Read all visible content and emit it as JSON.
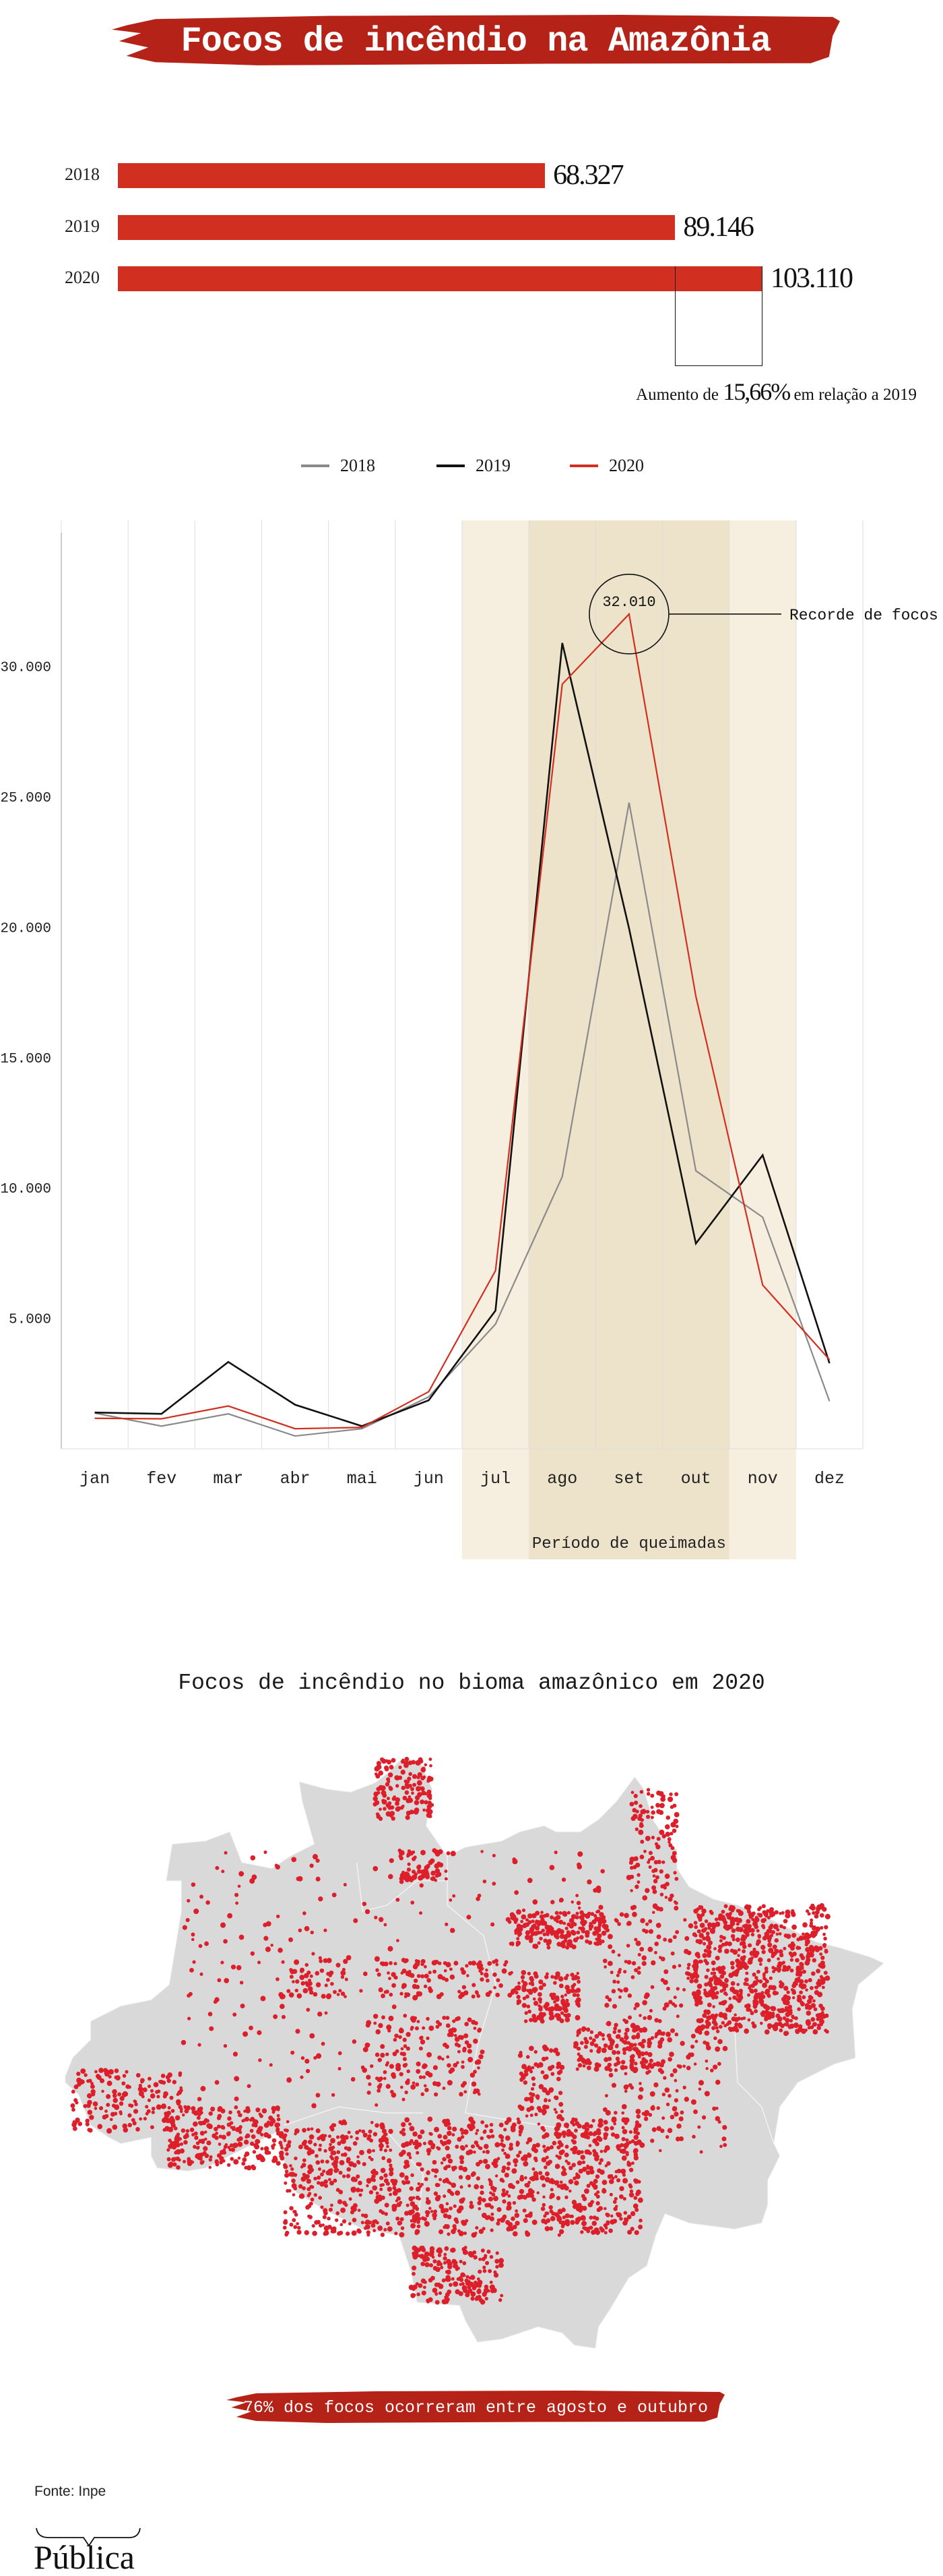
{
  "header": {
    "title": "Focos de incêndio na Amazônia"
  },
  "annotation_total": {
    "prefix": "Aumento de ",
    "value": "15,66%",
    "suffix": " em relação a 2019"
  },
  "legend": [
    {
      "label": "2018",
      "color": "#8a8a8a"
    },
    {
      "label": "2019",
      "color": "#111111"
    },
    {
      "label": "2020",
      "color": "#d12f20"
    }
  ],
  "chart_data": [
    {
      "type": "bar",
      "title": "Focos de incêndio na Amazônia",
      "orientation": "horizontal",
      "categories": [
        "2018",
        "2019",
        "2020"
      ],
      "values": [
        68327,
        89146,
        103110
      ],
      "value_labels": [
        "68.327",
        "89.146",
        "103.110"
      ],
      "color": "#d12f20"
    },
    {
      "type": "line",
      "categories": [
        "jan",
        "fev",
        "mar",
        "abr",
        "mai",
        "jun",
        "jul",
        "ago",
        "set",
        "out",
        "nov",
        "dez"
      ],
      "series": [
        {
          "name": "2018",
          "color": "#8a8a8a",
          "values": [
            1370,
            870,
            1340,
            490,
            770,
            1990,
            4780,
            10440,
            24780,
            10660,
            8880,
            1830
          ]
        },
        {
          "name": "2019",
          "color": "#111111",
          "values": [
            1390,
            1340,
            3330,
            1690,
            870,
            1860,
            5300,
            30900,
            19950,
            7870,
            11260,
            3280
          ]
        },
        {
          "name": "2020",
          "color": "#d12f20",
          "values": [
            1170,
            1150,
            1640,
            770,
            820,
            2190,
            6830,
            29320,
            32010,
            17350,
            6280,
            3420
          ]
        }
      ],
      "yticks": [
        5000,
        10000,
        15000,
        20000,
        25000,
        30000
      ],
      "ytick_labels": [
        "5.000",
        "10.000",
        "15.000",
        "20.000",
        "25.000",
        "30.000"
      ],
      "ylim": [
        0,
        35600
      ],
      "grid": "vertical",
      "shaded_periods": [
        {
          "label": "Período de queimadas",
          "from": "jul",
          "to": "nov",
          "color": "#f6efe0"
        },
        {
          "label": "",
          "from": "ago",
          "to": "out",
          "color": "#ede3cb"
        }
      ],
      "annotations": [
        {
          "month": "set",
          "value": 32010,
          "value_label": "32.010",
          "text": "Recorde de focos"
        }
      ]
    }
  ],
  "map": {
    "title": "Focos de incêndio no bioma amazônico em 2020",
    "land_color": "#d9d9d9",
    "dot_color": "#dc1f2a",
    "callout": "76% dos focos ocorreram entre agosto e outubro"
  },
  "footer": {
    "source": "Fonte: Inpe",
    "logo": "Pública"
  }
}
